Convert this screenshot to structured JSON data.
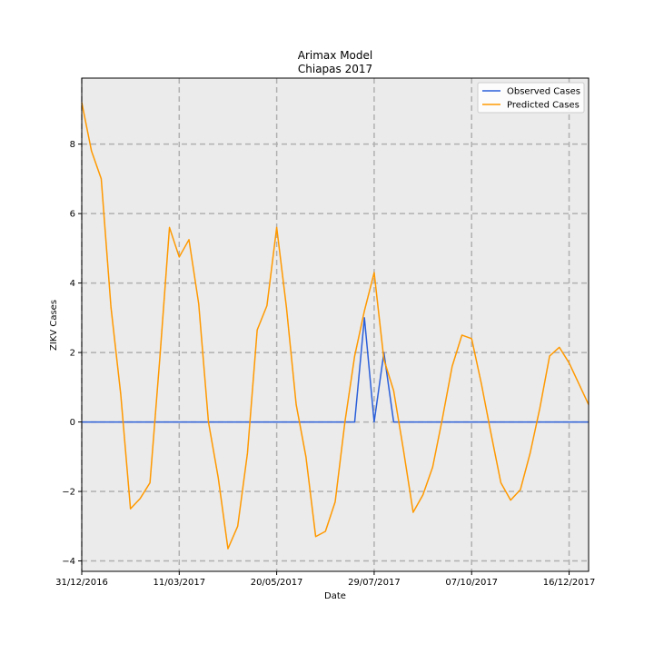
{
  "chart_data": {
    "type": "line",
    "title": "Arimax Model",
    "subtitle": "Chiapas 2017",
    "xlabel": "Date",
    "ylabel": "ZIKV Cases",
    "xlim": [
      "2016-12-31",
      "2017-12-30"
    ],
    "ylim": [
      -4.3,
      9.9
    ],
    "x_ticks": [
      "31/12/2016",
      "11/03/2017",
      "20/05/2017",
      "29/07/2017",
      "07/10/2017",
      "16/12/2017"
    ],
    "x_tick_dates": [
      "2016-12-31",
      "2017-03-11",
      "2017-05-20",
      "2017-07-29",
      "2017-10-07",
      "2017-12-16"
    ],
    "y_ticks": [
      -4,
      -2,
      0,
      2,
      4,
      6,
      8
    ],
    "y_tick_labels": [
      "−4",
      "−2",
      "0",
      "2",
      "4",
      "6",
      "8"
    ],
    "grid": true,
    "grid_style": "dashed",
    "plot_background": "#ebebeb",
    "legend_position": "top-right",
    "series": [
      {
        "name": "Observed Cases",
        "color": "#2b5fd9",
        "points": [
          [
            "2016-12-31",
            0
          ],
          [
            "2017-07-15",
            0
          ],
          [
            "2017-07-22",
            3
          ],
          [
            "2017-07-29",
            0
          ],
          [
            "2017-08-05",
            2
          ],
          [
            "2017-08-12",
            0
          ],
          [
            "2017-12-30",
            0
          ]
        ]
      },
      {
        "name": "Predicted Cases",
        "color": "#ff9900",
        "points": [
          [
            "2016-12-31",
            9.2
          ],
          [
            "2017-01-07",
            7.8
          ],
          [
            "2017-01-14",
            7.0
          ],
          [
            "2017-01-21",
            3.3
          ],
          [
            "2017-01-28",
            0.8
          ],
          [
            "2017-02-04",
            -2.5
          ],
          [
            "2017-02-11",
            -2.2
          ],
          [
            "2017-02-18",
            -1.75
          ],
          [
            "2017-02-25",
            1.8
          ],
          [
            "2017-03-04",
            5.6
          ],
          [
            "2017-03-11",
            4.75
          ],
          [
            "2017-03-18",
            5.25
          ],
          [
            "2017-03-25",
            3.4
          ],
          [
            "2017-04-01",
            0.0
          ],
          [
            "2017-04-08",
            -1.6
          ],
          [
            "2017-04-15",
            -3.65
          ],
          [
            "2017-04-22",
            -3.0
          ],
          [
            "2017-04-29",
            -0.9
          ],
          [
            "2017-05-06",
            2.65
          ],
          [
            "2017-05-13",
            3.35
          ],
          [
            "2017-05-20",
            5.6
          ],
          [
            "2017-05-27",
            3.3
          ],
          [
            "2017-06-03",
            0.5
          ],
          [
            "2017-06-10",
            -1.0
          ],
          [
            "2017-06-17",
            -3.3
          ],
          [
            "2017-06-24",
            -3.15
          ],
          [
            "2017-07-01",
            -2.3
          ],
          [
            "2017-07-08",
            0.0
          ],
          [
            "2017-07-15",
            1.9
          ],
          [
            "2017-07-22",
            3.2
          ],
          [
            "2017-07-29",
            4.3
          ],
          [
            "2017-08-05",
            1.8
          ],
          [
            "2017-08-12",
            0.9
          ],
          [
            "2017-08-19",
            -0.8
          ],
          [
            "2017-08-26",
            -2.6
          ],
          [
            "2017-09-02",
            -2.1
          ],
          [
            "2017-09-09",
            -1.3
          ],
          [
            "2017-09-16",
            0.1
          ],
          [
            "2017-09-23",
            1.6
          ],
          [
            "2017-09-30",
            2.5
          ],
          [
            "2017-10-07",
            2.4
          ],
          [
            "2017-10-14",
            1.1
          ],
          [
            "2017-10-21",
            -0.35
          ],
          [
            "2017-10-28",
            -1.75
          ],
          [
            "2017-11-04",
            -2.25
          ],
          [
            "2017-11-11",
            -1.95
          ],
          [
            "2017-11-18",
            -0.9
          ],
          [
            "2017-11-25",
            0.4
          ],
          [
            "2017-12-02",
            1.9
          ],
          [
            "2017-12-09",
            2.15
          ],
          [
            "2017-12-16",
            1.7
          ],
          [
            "2017-12-30",
            0.5
          ]
        ]
      }
    ]
  }
}
